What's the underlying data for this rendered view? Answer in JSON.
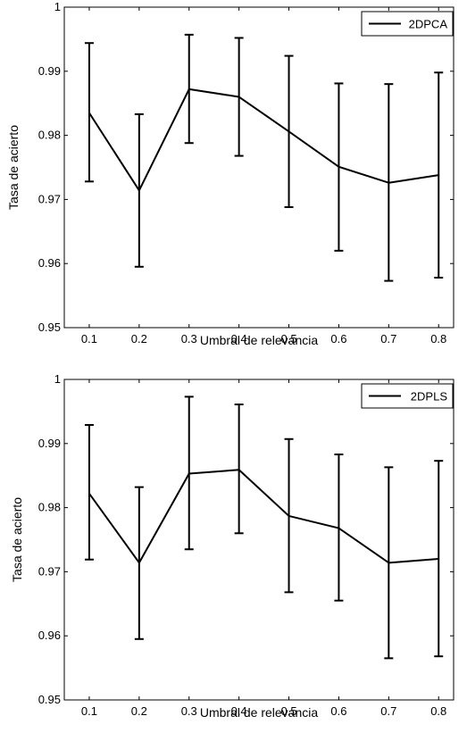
{
  "chart_data": [
    {
      "type": "line",
      "error_bars": true,
      "title": "",
      "xlabel": "Umbral de relevancia",
      "ylabel": "Tasa de acierto",
      "xlim": [
        0.05,
        0.83
      ],
      "ylim": [
        0.95,
        1.0
      ],
      "xticks": [
        "0.1",
        "0.2",
        "0.3",
        "0.4",
        "0.5",
        "0.6",
        "0.7",
        "0.8"
      ],
      "yticks": [
        "0.95",
        "0.96",
        "0.97",
        "0.98",
        "0.99",
        "1"
      ],
      "legend_position": "top-right",
      "grid": false,
      "series": [
        {
          "name": "2DPCA",
          "color": "#000000",
          "x": [
            0.1,
            0.2,
            0.3,
            0.4,
            0.5,
            0.6,
            0.7,
            0.8
          ],
          "y": [
            0.9835,
            0.9714,
            0.9872,
            0.986,
            0.9806,
            0.9751,
            0.9726,
            0.9738
          ],
          "err_upper": [
            0.9944,
            0.9833,
            0.9957,
            0.9952,
            0.9924,
            0.9881,
            0.988,
            0.9898
          ],
          "err_lower": [
            0.9728,
            0.9595,
            0.9788,
            0.9768,
            0.9688,
            0.962,
            0.9573,
            0.9578
          ]
        }
      ]
    },
    {
      "type": "line",
      "error_bars": true,
      "title": "",
      "xlabel": "Umbral de relevancia",
      "ylabel": "Tasa de acierto",
      "xlim": [
        0.05,
        0.83
      ],
      "ylim": [
        0.95,
        1.0
      ],
      "xticks": [
        "0.1",
        "0.2",
        "0.3",
        "0.4",
        "0.5",
        "0.6",
        "0.7",
        "0.8"
      ],
      "yticks": [
        "0.95",
        "0.96",
        "0.97",
        "0.98",
        "0.99",
        "1"
      ],
      "legend_position": "top-right",
      "grid": false,
      "series": [
        {
          "name": "2DPLS",
          "color": "#000000",
          "x": [
            0.1,
            0.2,
            0.3,
            0.4,
            0.5,
            0.6,
            0.7,
            0.8
          ],
          "y": [
            0.9822,
            0.9714,
            0.9853,
            0.9859,
            0.9787,
            0.9768,
            0.9714,
            0.972
          ],
          "err_upper": [
            0.9929,
            0.9832,
            0.9973,
            0.9961,
            0.9907,
            0.9883,
            0.9863,
            0.9873
          ],
          "err_lower": [
            0.9719,
            0.9595,
            0.9735,
            0.976,
            0.9668,
            0.9655,
            0.9565,
            0.9568
          ]
        }
      ]
    }
  ]
}
